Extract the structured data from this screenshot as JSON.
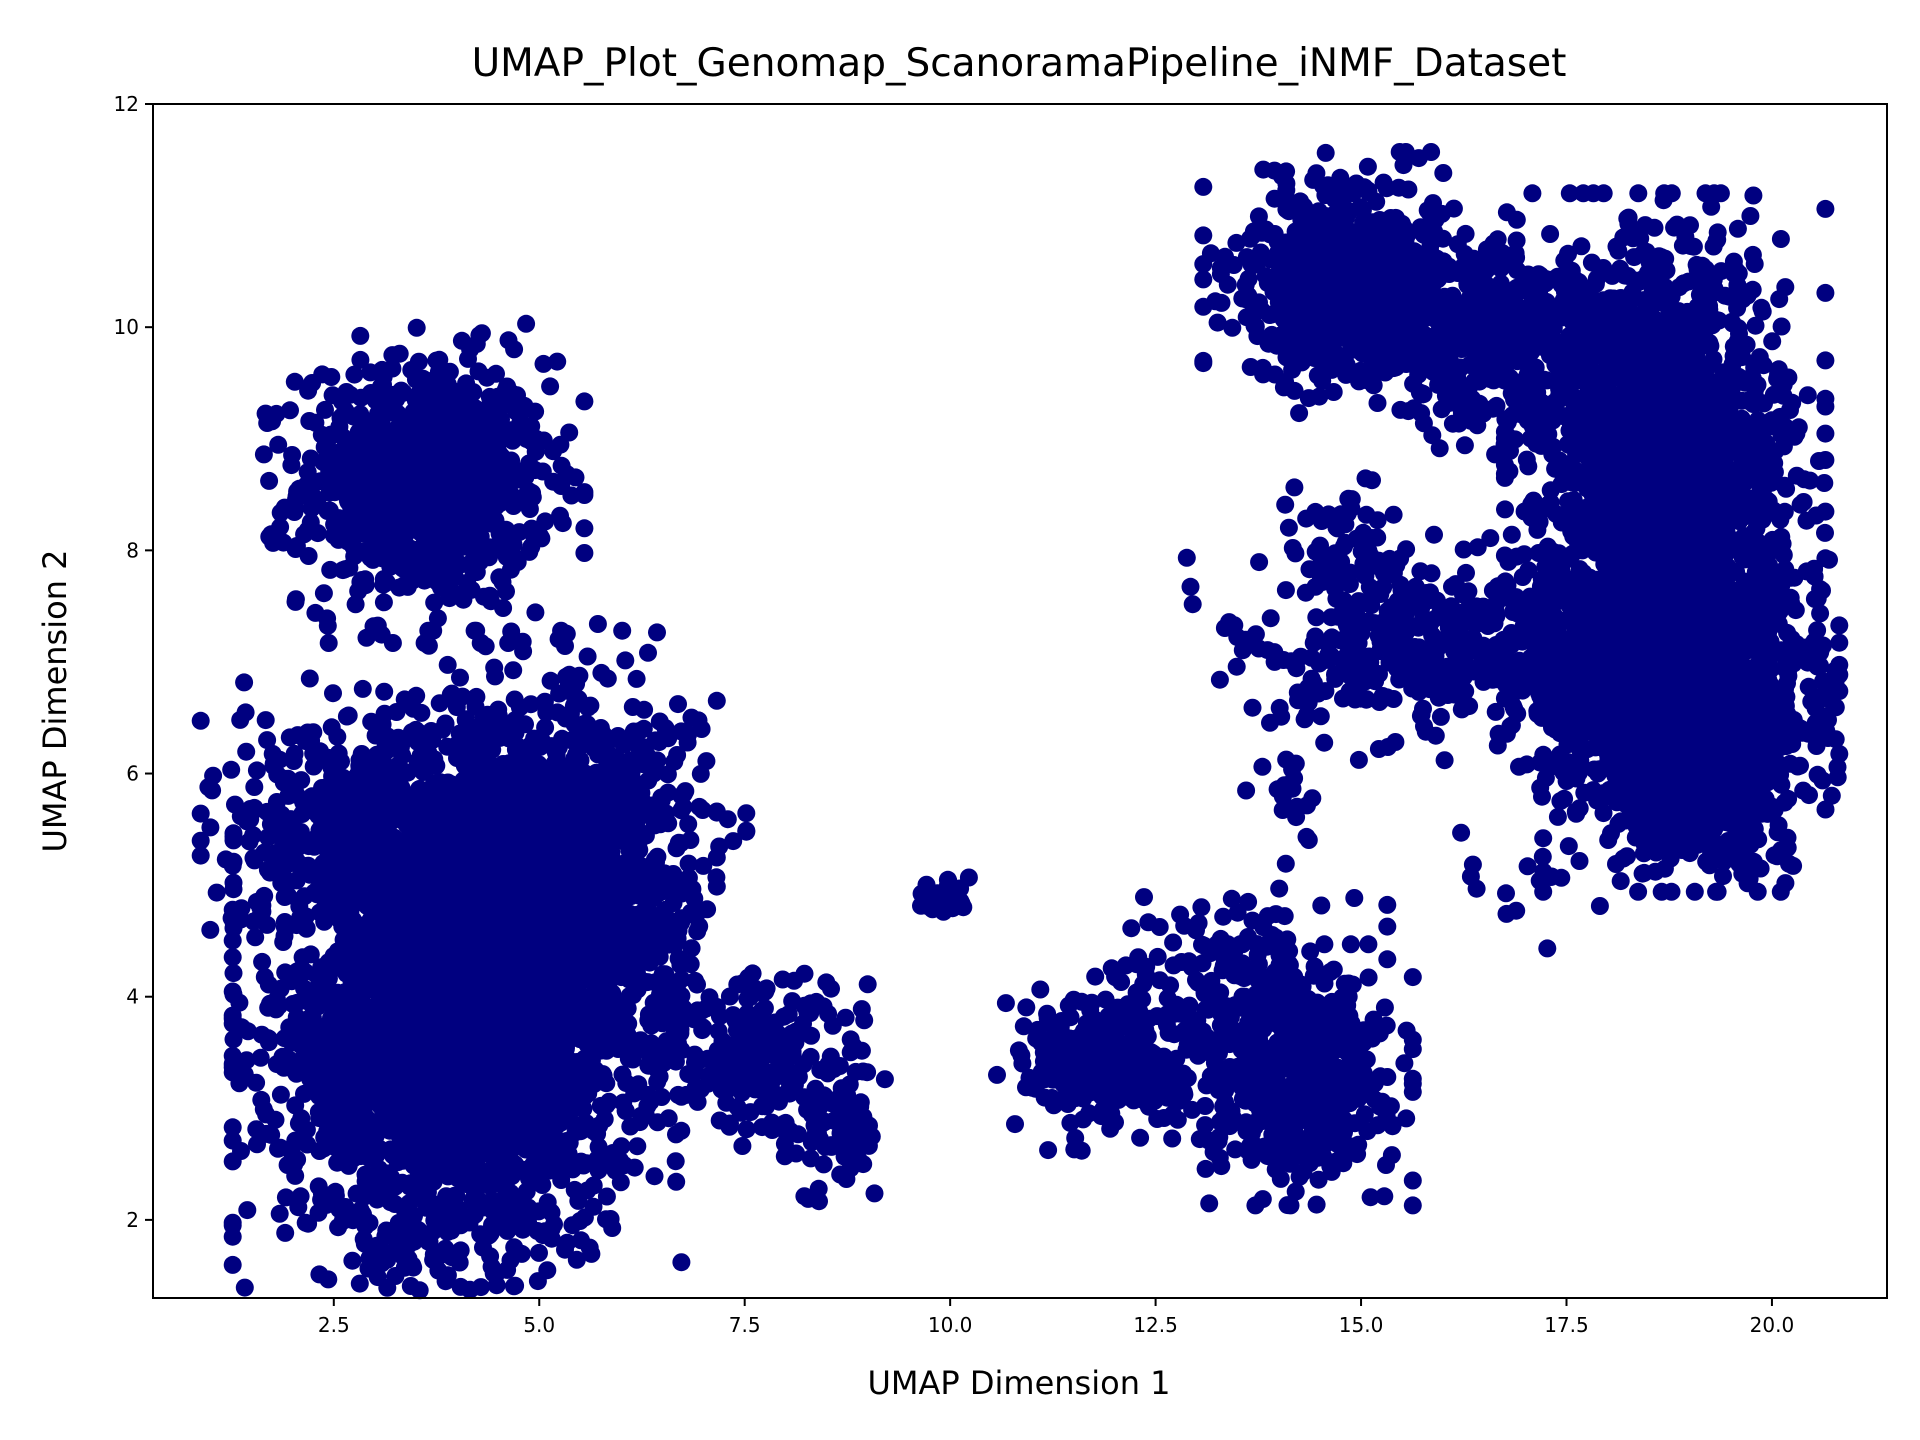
{
  "chart_data": {
    "type": "scatter",
    "title": "UMAP_Plot_Genomap_ScanoramaPipeline_iNMF_Dataset",
    "xlabel": "UMAP Dimension 1",
    "ylabel": "UMAP Dimension 2",
    "xlim": [
      0.3,
      21.4
    ],
    "ylim": [
      1.3,
      12.0
    ],
    "xticks": [
      2.5,
      5.0,
      7.5,
      10.0,
      12.5,
      15.0,
      17.5,
      20.0
    ],
    "xtick_labels": [
      "2.5",
      "5.0",
      "7.5",
      "10.0",
      "12.5",
      "15.0",
      "17.5",
      "20.0"
    ],
    "yticks": [
      2,
      4,
      6,
      8,
      10,
      12
    ],
    "ytick_labels": [
      "2",
      "4",
      "6",
      "8",
      "10",
      "12"
    ],
    "grid": false,
    "marker_color": "#000080",
    "clusters": [
      {
        "cx": 3.6,
        "cy": 8.6,
        "sx": 0.75,
        "sy": 0.55,
        "n": 900
      },
      {
        "cx": 4.0,
        "cy": 3.6,
        "sx": 1.05,
        "sy": 0.95,
        "n": 2600
      },
      {
        "cx": 4.4,
        "cy": 5.2,
        "sx": 1.2,
        "sy": 0.8,
        "n": 1300
      },
      {
        "cx": 2.7,
        "cy": 5.5,
        "sx": 0.7,
        "sy": 0.45,
        "n": 300
      },
      {
        "cx": 5.6,
        "cy": 5.0,
        "sx": 0.6,
        "sy": 0.9,
        "n": 500
      },
      {
        "cx": 7.7,
        "cy": 3.5,
        "sx": 0.6,
        "sy": 0.35,
        "n": 200
      },
      {
        "cx": 8.5,
        "cy": 2.8,
        "sx": 0.3,
        "sy": 0.3,
        "n": 80
      },
      {
        "cx": 9.9,
        "cy": 4.9,
        "sx": 0.18,
        "sy": 0.1,
        "n": 30
      },
      {
        "cx": 12.0,
        "cy": 3.4,
        "sx": 0.55,
        "sy": 0.3,
        "n": 300
      },
      {
        "cx": 14.2,
        "cy": 3.3,
        "sx": 0.55,
        "sy": 0.45,
        "n": 600
      },
      {
        "cx": 13.5,
        "cy": 4.3,
        "sx": 0.7,
        "sy": 0.3,
        "n": 120
      },
      {
        "cx": 14.9,
        "cy": 10.4,
        "sx": 0.7,
        "sy": 0.45,
        "n": 700
      },
      {
        "cx": 16.7,
        "cy": 9.9,
        "sx": 0.8,
        "sy": 0.4,
        "n": 400
      },
      {
        "cx": 18.7,
        "cy": 8.6,
        "sx": 0.75,
        "sy": 1.0,
        "n": 2000
      },
      {
        "cx": 19.0,
        "cy": 6.5,
        "sx": 0.7,
        "sy": 0.6,
        "n": 1800
      },
      {
        "cx": 16.0,
        "cy": 7.1,
        "sx": 1.2,
        "sy": 0.4,
        "n": 500
      },
      {
        "cx": 14.8,
        "cy": 8.0,
        "sx": 0.4,
        "sy": 0.3,
        "n": 60
      },
      {
        "cx": 17.0,
        "cy": 5.0,
        "sx": 0.5,
        "sy": 0.25,
        "n": 15
      },
      {
        "cx": 14.2,
        "cy": 5.7,
        "sx": 0.3,
        "sy": 0.4,
        "n": 20
      }
    ]
  }
}
